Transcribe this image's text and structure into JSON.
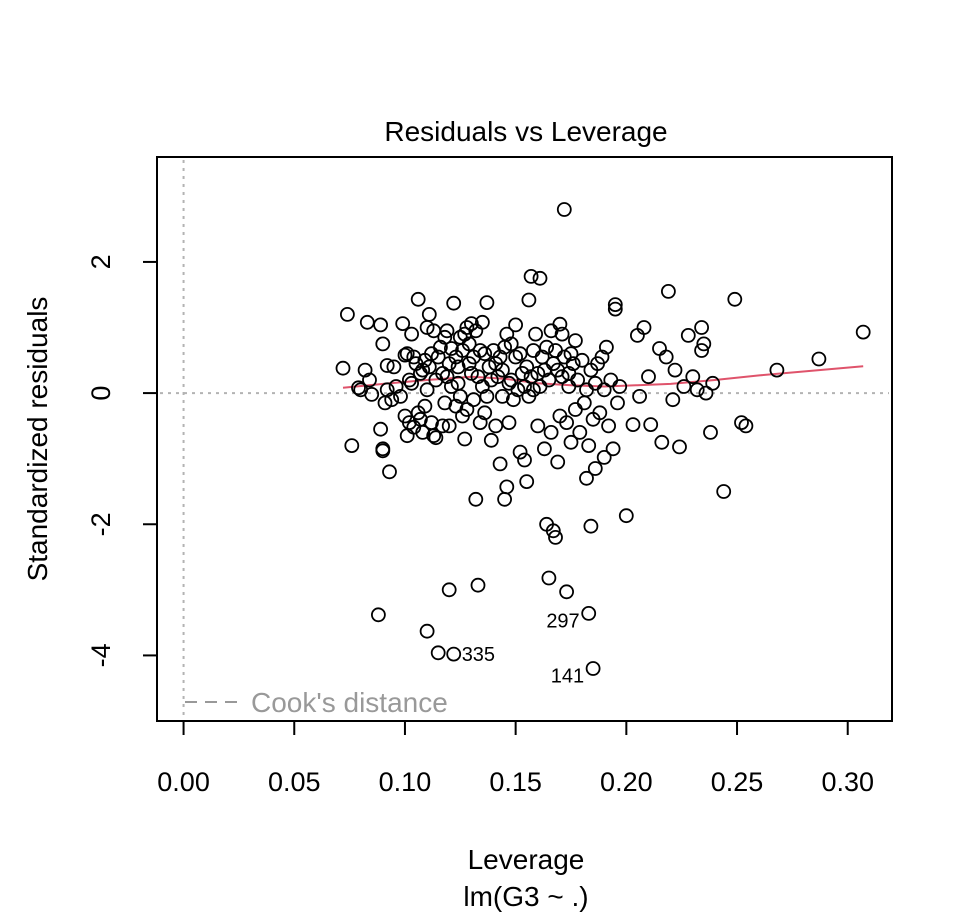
{
  "chart_data": {
    "type": "scatter",
    "title": "Residuals vs Leverage",
    "xlabel": "Leverage",
    "xsublabel": "lm(G3 ~ .)",
    "ylabel": "Standardized residuals",
    "xlim": [
      -0.012,
      0.32
    ],
    "ylim": [
      -5.0,
      3.6
    ],
    "xticks": [
      "0.00",
      "0.05",
      "0.10",
      "0.15",
      "0.20",
      "0.25",
      "0.30"
    ],
    "xtick_values": [
      0.0,
      0.05,
      0.1,
      0.15,
      0.2,
      0.25,
      0.3
    ],
    "yticks": [
      "2",
      "0",
      "-2",
      "-4"
    ],
    "ytick_values": [
      2,
      0,
      -2,
      -4
    ],
    "grid": false,
    "reference_lines": {
      "x": 0,
      "y": 0,
      "style": "dotted",
      "color": "#b3b3b3"
    },
    "legend": {
      "label": "Cook's distance",
      "position": "bottom-left",
      "style": "dashed",
      "color": "#999999"
    },
    "colors": {
      "points": "#000000",
      "smoother": "#DF536B",
      "reference": "#b3b3b3",
      "legend": "#999999"
    },
    "points": [
      [
        0.072,
        0.38
      ],
      [
        0.074,
        1.2
      ],
      [
        0.076,
        -0.8
      ],
      [
        0.079,
        0.08
      ],
      [
        0.08,
        0.05
      ],
      [
        0.082,
        0.35
      ],
      [
        0.083,
        1.08
      ],
      [
        0.084,
        0.2
      ],
      [
        0.085,
        -0.02
      ],
      [
        0.088,
        -3.38
      ],
      [
        0.089,
        -0.55
      ],
      [
        0.089,
        1.04
      ],
      [
        0.09,
        -0.85
      ],
      [
        0.09,
        -0.88
      ],
      [
        0.09,
        0.75
      ],
      [
        0.091,
        -0.15
      ],
      [
        0.092,
        0.42
      ],
      [
        0.092,
        0.05
      ],
      [
        0.093,
        -1.2
      ],
      [
        0.094,
        -0.1
      ],
      [
        0.095,
        0.4
      ],
      [
        0.096,
        0.1
      ],
      [
        0.098,
        -0.05
      ],
      [
        0.099,
        1.06
      ],
      [
        0.1,
        0.58
      ],
      [
        0.1,
        -0.35
      ],
      [
        0.101,
        -0.65
      ],
      [
        0.101,
        0.6
      ],
      [
        0.102,
        -0.45
      ],
      [
        0.102,
        0.2
      ],
      [
        0.103,
        0.9
      ],
      [
        0.103,
        0.15
      ],
      [
        0.104,
        0.55
      ],
      [
        0.104,
        -0.52
      ],
      [
        0.105,
        0.45
      ],
      [
        0.106,
        1.43
      ],
      [
        0.106,
        -0.3
      ],
      [
        0.107,
        0.3
      ],
      [
        0.107,
        -0.4
      ],
      [
        0.108,
        0.35
      ],
      [
        0.108,
        -0.6
      ],
      [
        0.109,
        -0.2
      ],
      [
        0.109,
        0.5
      ],
      [
        0.11,
        -3.63
      ],
      [
        0.11,
        0.05
      ],
      [
        0.11,
        1.0
      ],
      [
        0.111,
        0.4
      ],
      [
        0.111,
        1.2
      ],
      [
        0.112,
        -0.45
      ],
      [
        0.112,
        0.6
      ],
      [
        0.113,
        -0.65
      ],
      [
        0.113,
        0.95
      ],
      [
        0.114,
        0.2
      ],
      [
        0.114,
        -0.68
      ],
      [
        0.115,
        0.55
      ],
      [
        0.115,
        -3.96
      ],
      [
        0.116,
        0.7
      ],
      [
        0.117,
        -0.5
      ],
      [
        0.117,
        0.3
      ],
      [
        0.118,
        0.85
      ],
      [
        0.118,
        -0.15
      ],
      [
        0.119,
        0.25
      ],
      [
        0.119,
        0.95
      ],
      [
        0.12,
        -3.0
      ],
      [
        0.12,
        0.45
      ],
      [
        0.12,
        -0.5
      ],
      [
        0.121,
        0.1
      ],
      [
        0.121,
        0.68
      ],
      [
        0.122,
        -3.98
      ],
      [
        0.122,
        1.37
      ],
      [
        0.123,
        -0.2
      ],
      [
        0.123,
        0.55
      ],
      [
        0.124,
        0.15
      ],
      [
        0.124,
        0.4
      ],
      [
        0.125,
        -0.05
      ],
      [
        0.125,
        0.85
      ],
      [
        0.126,
        0.65
      ],
      [
        0.126,
        -0.35
      ],
      [
        0.127,
        -0.7
      ],
      [
        0.127,
        0.9
      ],
      [
        0.128,
        1.0
      ],
      [
        0.128,
        -0.25
      ],
      [
        0.129,
        0.45
      ],
      [
        0.129,
        0.75
      ],
      [
        0.13,
        0.3
      ],
      [
        0.13,
        1.06
      ],
      [
        0.131,
        -0.1
      ],
      [
        0.131,
        0.55
      ],
      [
        0.132,
        -1.62
      ],
      [
        0.132,
        0.95
      ],
      [
        0.133,
        -2.93
      ],
      [
        0.133,
        0.25
      ],
      [
        0.134,
        0.65
      ],
      [
        0.134,
        -0.45
      ],
      [
        0.135,
        1.08
      ],
      [
        0.135,
        0.1
      ],
      [
        0.136,
        -0.3
      ],
      [
        0.136,
        0.6
      ],
      [
        0.137,
        1.38
      ],
      [
        0.137,
        -0.05
      ],
      [
        0.138,
        0.4
      ],
      [
        0.139,
        -0.72
      ],
      [
        0.139,
        0.2
      ],
      [
        0.14,
        0.65
      ],
      [
        0.141,
        -0.5
      ],
      [
        0.141,
        0.45
      ],
      [
        0.142,
        0.25
      ],
      [
        0.143,
        -1.08
      ],
      [
        0.143,
        0.55
      ],
      [
        0.144,
        -0.05
      ],
      [
        0.144,
        0.35
      ],
      [
        0.145,
        -1.62
      ],
      [
        0.145,
        0.7
      ],
      [
        0.146,
        -1.43
      ],
      [
        0.146,
        0.9
      ],
      [
        0.147,
        0.15
      ],
      [
        0.147,
        -0.45
      ],
      [
        0.148,
        0.75
      ],
      [
        0.148,
        0.2
      ],
      [
        0.149,
        -0.1
      ],
      [
        0.15,
        1.04
      ],
      [
        0.15,
        0.55
      ],
      [
        0.151,
        0.05
      ],
      [
        0.152,
        -0.9
      ],
      [
        0.152,
        0.6
      ],
      [
        0.153,
        0.3
      ],
      [
        0.154,
        -1.02
      ],
      [
        0.154,
        0.1
      ],
      [
        0.155,
        -1.35
      ],
      [
        0.155,
        0.4
      ],
      [
        0.156,
        1.42
      ],
      [
        0.156,
        -0.05
      ],
      [
        0.157,
        0.25
      ],
      [
        0.157,
        1.78
      ],
      [
        0.158,
        0.65
      ],
      [
        0.158,
        0.05
      ],
      [
        0.159,
        0.9
      ],
      [
        0.16,
        0.3
      ],
      [
        0.16,
        -0.5
      ],
      [
        0.161,
        1.75
      ],
      [
        0.161,
        0.1
      ],
      [
        0.162,
        0.55
      ],
      [
        0.163,
        0.35
      ],
      [
        0.163,
        -0.85
      ],
      [
        0.164,
        0.7
      ],
      [
        0.164,
        -2.0
      ],
      [
        0.165,
        -2.82
      ],
      [
        0.165,
        0.2
      ],
      [
        0.166,
        0.95
      ],
      [
        0.166,
        -0.6
      ],
      [
        0.167,
        0.45
      ],
      [
        0.167,
        -2.1
      ],
      [
        0.168,
        -2.2
      ],
      [
        0.168,
        0.65
      ],
      [
        0.169,
        0.35
      ],
      [
        0.169,
        -1.05
      ],
      [
        0.17,
        1.05
      ],
      [
        0.17,
        -0.35
      ],
      [
        0.171,
        0.25
      ],
      [
        0.171,
        0.9
      ],
      [
        0.172,
        2.8
      ],
      [
        0.172,
        0.55
      ],
      [
        0.173,
        -0.45
      ],
      [
        0.173,
        -3.03
      ],
      [
        0.174,
        0.3
      ],
      [
        0.174,
        0.1
      ],
      [
        0.175,
        0.6
      ],
      [
        0.175,
        -0.75
      ],
      [
        0.176,
        0.45
      ],
      [
        0.177,
        -0.25
      ],
      [
        0.177,
        0.8
      ],
      [
        0.178,
        0.2
      ],
      [
        0.179,
        -0.6
      ],
      [
        0.18,
        0.5
      ],
      [
        0.181,
        -0.15
      ],
      [
        0.182,
        -1.3
      ],
      [
        0.182,
        0.05
      ],
      [
        0.183,
        -3.36
      ],
      [
        0.183,
        -0.8
      ],
      [
        0.184,
        -2.03
      ],
      [
        0.184,
        0.35
      ],
      [
        0.185,
        -4.2
      ],
      [
        0.185,
        -0.4
      ],
      [
        0.186,
        -1.15
      ],
      [
        0.186,
        0.15
      ],
      [
        0.187,
        0.45
      ],
      [
        0.188,
        -0.3
      ],
      [
        0.189,
        0.55
      ],
      [
        0.19,
        -0.98
      ],
      [
        0.19,
        0.05
      ],
      [
        0.191,
        0.7
      ],
      [
        0.192,
        -0.5
      ],
      [
        0.193,
        0.2
      ],
      [
        0.194,
        -0.85
      ],
      [
        0.195,
        1.35
      ],
      [
        0.195,
        1.28
      ],
      [
        0.196,
        -0.15
      ],
      [
        0.197,
        0.1
      ],
      [
        0.2,
        -1.87
      ],
      [
        0.203,
        -0.48
      ],
      [
        0.205,
        0.88
      ],
      [
        0.206,
        -0.05
      ],
      [
        0.208,
        1.0
      ],
      [
        0.21,
        0.25
      ],
      [
        0.211,
        -0.48
      ],
      [
        0.215,
        0.68
      ],
      [
        0.216,
        -0.75
      ],
      [
        0.218,
        0.55
      ],
      [
        0.219,
        1.55
      ],
      [
        0.221,
        -0.1
      ],
      [
        0.222,
        0.35
      ],
      [
        0.224,
        -0.82
      ],
      [
        0.226,
        0.1
      ],
      [
        0.228,
        0.88
      ],
      [
        0.23,
        0.25
      ],
      [
        0.232,
        0.05
      ],
      [
        0.234,
        1.0
      ],
      [
        0.234,
        0.65
      ],
      [
        0.235,
        0.75
      ],
      [
        0.236,
        0.0
      ],
      [
        0.238,
        -0.6
      ],
      [
        0.239,
        0.15
      ],
      [
        0.244,
        -1.5
      ],
      [
        0.249,
        1.43
      ],
      [
        0.252,
        -0.45
      ],
      [
        0.254,
        -0.5
      ],
      [
        0.268,
        0.35
      ],
      [
        0.287,
        0.52
      ],
      [
        0.307,
        0.93
      ]
    ],
    "labeled_points": [
      {
        "label": "297",
        "x": 0.183,
        "y": -3.36
      },
      {
        "label": "335",
        "x": 0.122,
        "y": -3.98
      },
      {
        "label": "141",
        "x": 0.185,
        "y": -4.2
      }
    ],
    "smoother": [
      [
        0.072,
        0.08
      ],
      [
        0.09,
        0.14
      ],
      [
        0.11,
        0.2
      ],
      [
        0.13,
        0.25
      ],
      [
        0.145,
        0.22
      ],
      [
        0.16,
        0.15
      ],
      [
        0.175,
        0.12
      ],
      [
        0.19,
        0.1
      ],
      [
        0.205,
        0.12
      ],
      [
        0.22,
        0.14
      ],
      [
        0.24,
        0.2
      ],
      [
        0.26,
        0.27
      ],
      [
        0.28,
        0.33
      ],
      [
        0.307,
        0.41
      ]
    ]
  }
}
